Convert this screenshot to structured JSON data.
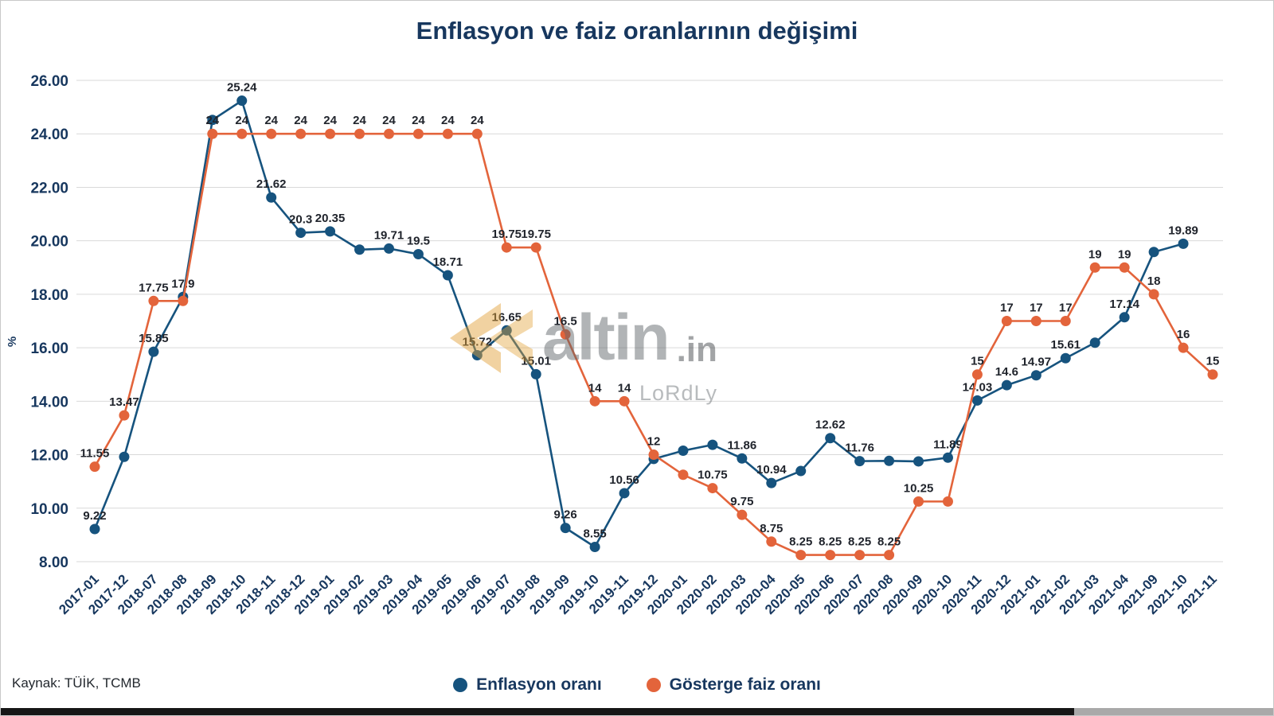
{
  "page": {
    "source_note": "Kaynak: TÜİK, TCMB",
    "watermark": {
      "brand": "altin",
      "tld": ".in",
      "subtext": "LoRdLy"
    }
  },
  "chart_data": {
    "type": "line",
    "title": "Enflasyon ve faiz oranlarının değişimi",
    "xlabel": "",
    "ylabel": "%",
    "ylim": [
      8,
      26
    ],
    "ytick_step": 2,
    "ytick_labels": [
      "8.00",
      "10.00",
      "12.00",
      "14.00",
      "16.00",
      "18.00",
      "20.00",
      "22.00",
      "24.00",
      "26.00"
    ],
    "grid": true,
    "legend_position": "bottom",
    "categories": [
      "2017-01",
      "2017-12",
      "2018-07",
      "2018-08",
      "2018-09",
      "2018-10",
      "2018-11",
      "2018-12",
      "2019-01",
      "2019-02",
      "2019-03",
      "2019-04",
      "2019-05",
      "2019-06",
      "2019-07",
      "2019-08",
      "2019-09",
      "2019-10",
      "2019-11",
      "2019-12",
      "2020-01",
      "2020-02",
      "2020-03",
      "2020-04",
      "2020-05",
      "2020-06",
      "2020-07",
      "2020-08",
      "2020-09",
      "2020-10",
      "2020-11",
      "2020-12",
      "2021-01",
      "2021-02",
      "2021-03",
      "2021-04",
      "2021-09",
      "2021-10",
      "2021-11"
    ],
    "series": [
      {
        "name": "Enflasyon oranı",
        "color": "#16537E",
        "values": [
          9.22,
          11.92,
          15.85,
          17.9,
          24.52,
          25.24,
          21.62,
          20.3,
          20.35,
          19.67,
          19.71,
          19.5,
          18.71,
          15.72,
          16.65,
          15.01,
          9.26,
          8.55,
          10.56,
          11.84,
          12.15,
          12.37,
          11.86,
          10.94,
          11.39,
          12.62,
          11.76,
          11.77,
          11.75,
          11.89,
          14.03,
          14.6,
          14.97,
          15.61,
          16.19,
          17.14,
          19.58,
          19.89,
          null
        ],
        "labels": [
          "9.22",
          "",
          "15.85",
          "17.9",
          "",
          "25.24",
          "21.62",
          "20.3",
          "20.35",
          "",
          "19.71",
          "19.5",
          "18.71",
          "15.72",
          "16.65",
          "15.01",
          "9.26",
          "8.55",
          "10.56",
          "",
          "",
          "",
          "11.86",
          "10.94",
          "",
          "12.62",
          "11.76",
          "",
          "",
          "11.89",
          "14.03",
          "14.6",
          "14.97",
          "15.61",
          "",
          "17.14",
          "",
          "19.89",
          ""
        ]
      },
      {
        "name": "Gösterge faiz oranı",
        "color": "#E3643B",
        "values": [
          11.55,
          13.47,
          17.75,
          17.75,
          24,
          24,
          24,
          24,
          24,
          24,
          24,
          24,
          24,
          24,
          19.75,
          19.75,
          16.5,
          14,
          14,
          12,
          11.25,
          10.75,
          9.75,
          8.75,
          8.25,
          8.25,
          8.25,
          8.25,
          10.25,
          10.25,
          15,
          17,
          17,
          17,
          19,
          19,
          18,
          16,
          15
        ],
        "labels": [
          "11.55",
          "13.47",
          "17.75",
          "",
          "24",
          "24",
          "24",
          "24",
          "24",
          "24",
          "24",
          "24",
          "24",
          "24",
          "19.75",
          "19.75",
          "16.5",
          "14",
          "14",
          "12",
          "",
          "10.75",
          "9.75",
          "8.75",
          "8.25",
          "8.25",
          "8.25",
          "8.25",
          "10.25",
          "",
          "15",
          "17",
          "17",
          "17",
          "19",
          "19",
          "18",
          "16",
          "15"
        ]
      }
    ]
  }
}
